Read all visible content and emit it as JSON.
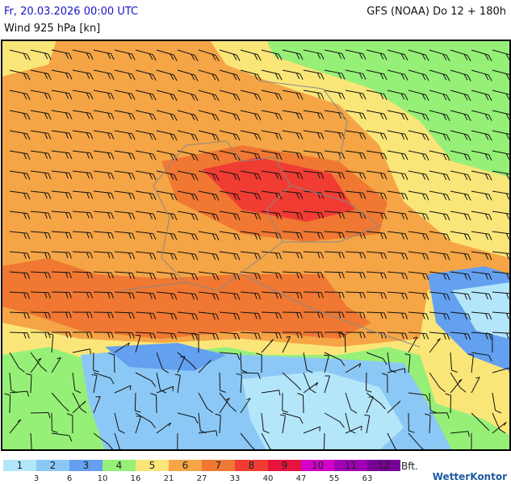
{
  "header": {
    "date": "Fr, 20.03.2026 00:00 UTC",
    "field": "Wind 925 hPa [kn]",
    "model": "GFS (NOAA) Do 12 + 180h"
  },
  "legend": {
    "classes": [
      {
        "label": "1",
        "color": "#b4e6fa"
      },
      {
        "label": "2",
        "color": "#8cc8f5"
      },
      {
        "label": "3",
        "color": "#64a0f0"
      },
      {
        "label": "4",
        "color": "#96f078"
      },
      {
        "label": "5",
        "color": "#fae678"
      },
      {
        "label": "6",
        "color": "#f5a546"
      },
      {
        "label": "7",
        "color": "#f07832"
      },
      {
        "label": "8",
        "color": "#f03c32"
      },
      {
        "label": "9",
        "color": "#e6143c"
      },
      {
        "label": "10",
        "color": "#d200c8"
      },
      {
        "label": "11",
        "color": "#a000b4"
      },
      {
        "label": "12",
        "color": "#780096"
      }
    ],
    "thresholds": [
      3,
      6,
      10,
      16,
      21,
      27,
      33,
      40,
      47,
      55,
      63
    ],
    "unit": "Bft."
  },
  "logo": "WetterKontor"
}
